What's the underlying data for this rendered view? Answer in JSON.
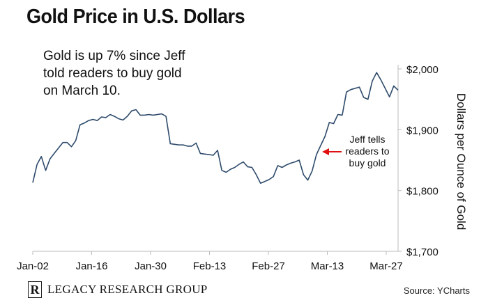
{
  "chart_data": {
    "type": "line",
    "title": "Gold Price in U.S. Dollars",
    "ylabel": "Dollars per Ounce of Gold",
    "annotation_box": [
      "Gold is up 7% since Jeff",
      "told readers to buy gold",
      "on March 10."
    ],
    "callout": [
      "Jeff tells",
      "readers to",
      "buy gold"
    ],
    "x_tick_labels": [
      "Jan-02",
      "Jan-16",
      "Jan-30",
      "Feb-13",
      "Feb-27",
      "Mar-13",
      "Mar-27"
    ],
    "y_tick_labels": [
      "$1,700",
      "$1,800",
      "$1,900",
      "$2,000"
    ],
    "ylim": [
      1700,
      2000
    ],
    "grid": false,
    "series": [
      {
        "color": "#2d4a6b",
        "values": [
          1813,
          1843,
          1856,
          1833,
          1852,
          1861,
          1870,
          1879,
          1879,
          1872,
          1882,
          1908,
          1911,
          1915,
          1917,
          1915,
          1921,
          1920,
          1925,
          1922,
          1918,
          1916,
          1922,
          1931,
          1933,
          1924,
          1924,
          1925,
          1924,
          1925,
          1926,
          1922,
          1877,
          1876,
          1875,
          1875,
          1873,
          1873,
          1878,
          1861,
          1860,
          1859,
          1858,
          1866,
          1833,
          1830,
          1835,
          1838,
          1843,
          1847,
          1839,
          1838,
          1826,
          1812,
          1815,
          1818,
          1823,
          1841,
          1838,
          1842,
          1845,
          1847,
          1850,
          1826,
          1817,
          1832,
          1859,
          1874,
          1889,
          1912,
          1910,
          1925,
          1924,
          1962,
          1966,
          1968,
          1970,
          1953,
          1950,
          1980,
          1994,
          1982,
          1968,
          1954,
          1972,
          1965
        ]
      }
    ]
  },
  "footer": {
    "logo_letter": "R",
    "org_name": "LEGACY RESEARCH GROUP",
    "source": "Source: YCharts"
  }
}
